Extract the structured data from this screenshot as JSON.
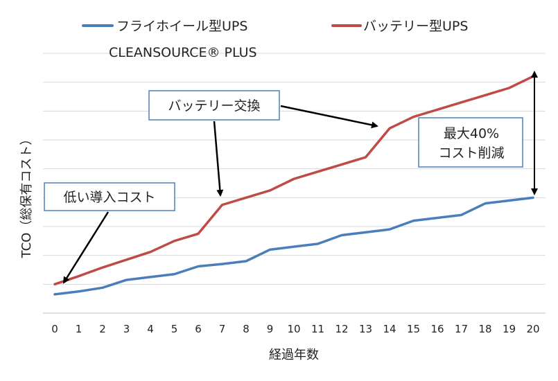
{
  "chart_data": {
    "type": "line",
    "title": "",
    "xlabel": "経過年数",
    "ylabel": "TCO（総保有コスト）",
    "x": [
      0,
      1,
      2,
      3,
      4,
      5,
      6,
      7,
      8,
      9,
      10,
      11,
      12,
      13,
      14,
      15,
      16,
      17,
      18,
      19,
      20
    ],
    "ylim": [
      0,
      9
    ],
    "grid": true,
    "legend_position": "top",
    "series": [
      {
        "name": "フライホイール型UPS",
        "name_line2": "CLEANSOURCE® PLUS",
        "color": "#4A7EBB",
        "values": [
          0.65,
          0.75,
          0.88,
          1.15,
          1.25,
          1.35,
          1.62,
          1.7,
          1.8,
          2.2,
          2.3,
          2.4,
          2.7,
          2.8,
          2.9,
          3.2,
          3.3,
          3.4,
          3.8,
          3.9,
          4.0
        ]
      },
      {
        "name": "バッテリー型UPS",
        "color": "#BE4B48",
        "values": [
          1.0,
          1.28,
          1.58,
          1.85,
          2.12,
          2.5,
          2.75,
          3.75,
          4.0,
          4.25,
          4.65,
          4.9,
          5.15,
          5.4,
          6.4,
          6.8,
          7.05,
          7.3,
          7.55,
          7.8,
          8.2
        ]
      }
    ],
    "annotations": [
      {
        "text": "低い導入コスト"
      },
      {
        "text": "バッテリー交換"
      },
      {
        "text_lines": [
          "最大40%",
          "コスト削減"
        ]
      }
    ]
  }
}
